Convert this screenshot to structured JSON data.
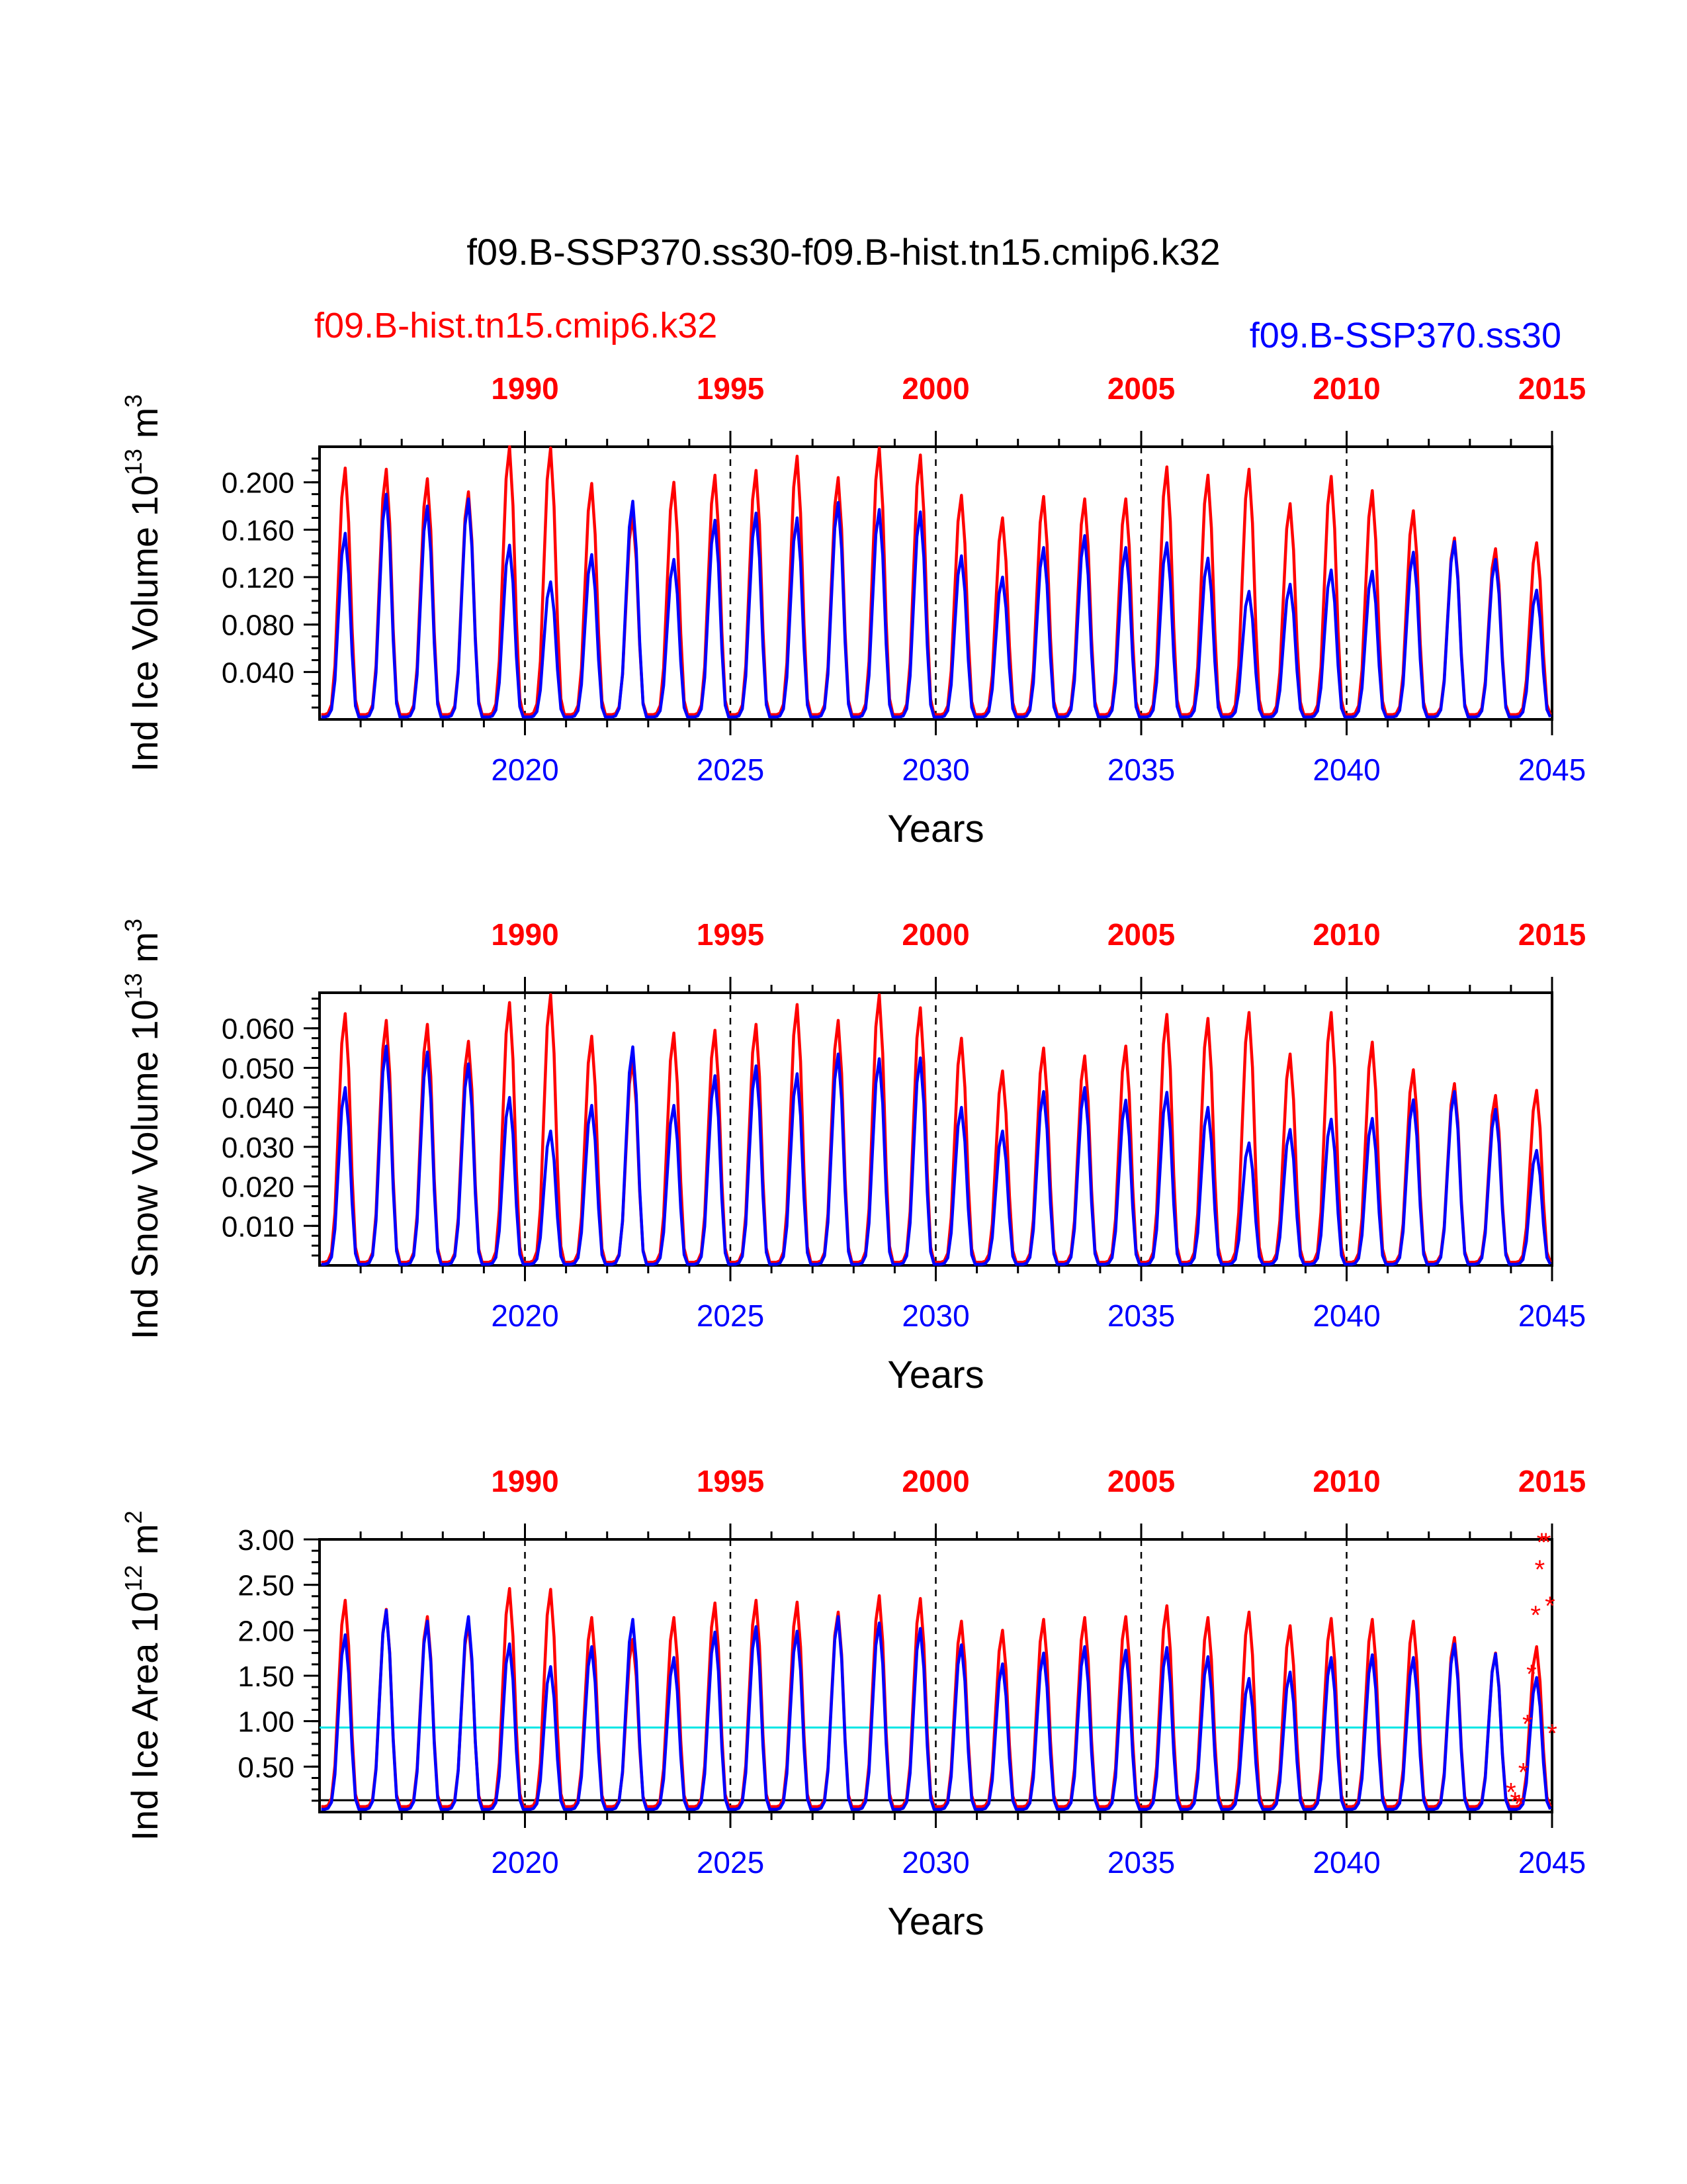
{
  "figure": {
    "title": "f09.B-SSP370.ss30-f09.B-hist.tn15.cmip6.k32",
    "legend_hist": "f09.B-hist.tn15.cmip6.k32",
    "legend_ssp": "f09.B-SSP370.ss30",
    "colors": {
      "hist": "#ff0000",
      "ssp": "#0000ff",
      "threshold": "#00e5e5",
      "ref": "#000000"
    }
  },
  "chart_data": [
    {
      "type": "line",
      "title": "",
      "ylabel_text": "Ind Ice Volume 10",
      "ylabel_sup": "13",
      "ylabel_unit": " m",
      "ylabel_unit_sup": "3",
      "xlabel": "Years",
      "ylim": [
        0,
        0.23
      ],
      "yticks": [
        "0.040",
        "0.080",
        "0.120",
        "0.160",
        "0.200"
      ],
      "ytick_values": [
        0.04,
        0.08,
        0.12,
        0.16,
        0.2
      ],
      "xlim_bottom": [
        2015,
        2045
      ],
      "xticks_bottom": [
        "2020",
        "2025",
        "2030",
        "2035",
        "2040",
        "2045"
      ],
      "xticks_top": [
        "1990",
        "1995",
        "2000",
        "2005",
        "2010",
        "2015"
      ],
      "xtick_values": [
        2020,
        2025,
        2030,
        2035,
        2040,
        2045
      ],
      "series": [
        {
          "name": "f09.B-hist.tn15.cmip6.k32",
          "color": "#ff0000",
          "annual_max": [
            0.212,
            0.211,
            0.203,
            0.192,
            0.23,
            0.229,
            0.199,
            0.172,
            0.2,
            0.206,
            0.21,
            0.222,
            0.204,
            0.229,
            0.223,
            0.189,
            0.17,
            0.188,
            0.186,
            0.186,
            0.213,
            0.206,
            0.211,
            0.182,
            0.205,
            0.193,
            0.176,
            0.153,
            0.144,
            0.149
          ],
          "annual_min": 0.004
        },
        {
          "name": "f09.B-SSP370.ss30",
          "color": "#0000ff",
          "annual_max": [
            0.157,
            0.19,
            0.18,
            0.186,
            0.147,
            0.116,
            0.139,
            0.184,
            0.135,
            0.168,
            0.174,
            0.17,
            0.183,
            0.177,
            0.175,
            0.138,
            0.12,
            0.145,
            0.155,
            0.145,
            0.149,
            0.136,
            0.108,
            0.114,
            0.126,
            0.125,
            0.141,
            0.15,
            0.135,
            0.109
          ],
          "annual_min": 0.002
        }
      ],
      "hlines": [],
      "markers": []
    },
    {
      "type": "line",
      "title": "",
      "ylabel_text": "Ind Snow Volume 10",
      "ylabel_sup": "13",
      "ylabel_unit": " m",
      "ylabel_unit_sup": "3",
      "xlabel": "Years",
      "ylim": [
        0,
        0.069
      ],
      "yticks": [
        "0.010",
        "0.020",
        "0.030",
        "0.040",
        "0.050",
        "0.060"
      ],
      "ytick_values": [
        0.01,
        0.02,
        0.03,
        0.04,
        0.05,
        0.06
      ],
      "xlim_bottom": [
        2015,
        2045
      ],
      "xticks_bottom": [
        "2020",
        "2025",
        "2030",
        "2035",
        "2040",
        "2045"
      ],
      "xticks_top": [
        "1990",
        "1995",
        "2000",
        "2005",
        "2010",
        "2015"
      ],
      "xtick_values": [
        2020,
        2025,
        2030,
        2035,
        2040,
        2045
      ],
      "series": [
        {
          "name": "f09.B-hist.tn15.cmip6.k32",
          "color": "#ff0000",
          "annual_max": [
            0.0637,
            0.062,
            0.061,
            0.0567,
            0.0665,
            0.0685,
            0.058,
            0.052,
            0.0588,
            0.0595,
            0.061,
            0.066,
            0.062,
            0.0685,
            0.0652,
            0.0575,
            0.0492,
            0.055,
            0.053,
            0.0555,
            0.0635,
            0.0625,
            0.064,
            0.0535,
            0.064,
            0.0565,
            0.0495,
            0.046,
            0.043,
            0.0443
          ],
          "annual_min": 0.0008
        },
        {
          "name": "f09.B-SSP370.ss30",
          "color": "#0000ff",
          "annual_max": [
            0.045,
            0.0555,
            0.054,
            0.051,
            0.0425,
            0.034,
            0.0405,
            0.0553,
            0.0405,
            0.048,
            0.0505,
            0.0485,
            0.0535,
            0.0523,
            0.0525,
            0.04,
            0.034,
            0.044,
            0.045,
            0.0418,
            0.0438,
            0.04,
            0.031,
            0.0344,
            0.037,
            0.0372,
            0.0419,
            0.044,
            0.0395,
            0.0291
          ],
          "annual_min": 0.0003
        }
      ],
      "hlines": [],
      "markers": []
    },
    {
      "type": "line",
      "title": "",
      "ylabel_text": "Ind Ice Area 10",
      "ylabel_sup": "12",
      "ylabel_unit": " m",
      "ylabel_unit_sup": "2",
      "xlabel": "Years",
      "ylim": [
        0,
        3.0
      ],
      "yticks": [
        "0.50",
        "1.00",
        "1.50",
        "2.00",
        "2.50",
        "3.00"
      ],
      "ytick_values": [
        0.5,
        1.0,
        1.5,
        2.0,
        2.5,
        3.0
      ],
      "xlim_bottom": [
        2015,
        2045
      ],
      "xticks_bottom": [
        "2020",
        "2025",
        "2030",
        "2035",
        "2040",
        "2045"
      ],
      "xticks_top": [
        "1990",
        "1995",
        "2000",
        "2005",
        "2010",
        "2015"
      ],
      "xtick_values": [
        2020,
        2025,
        2030,
        2035,
        2040,
        2045
      ],
      "series": [
        {
          "name": "f09.B-hist.tn15.cmip6.k32",
          "color": "#ff0000",
          "annual_max": [
            2.33,
            2.23,
            2.15,
            2.08,
            2.46,
            2.45,
            2.14,
            1.9,
            2.14,
            2.3,
            2.33,
            2.31,
            2.2,
            2.38,
            2.35,
            2.1,
            2.0,
            2.12,
            2.14,
            2.15,
            2.27,
            2.14,
            2.2,
            2.05,
            2.13,
            2.12,
            2.1,
            1.92,
            1.75,
            1.82
          ],
          "annual_min": 0.06
        },
        {
          "name": "f09.B-SSP370.ss30",
          "color": "#0000ff",
          "annual_max": [
            1.95,
            2.22,
            2.1,
            2.15,
            1.85,
            1.6,
            1.82,
            2.12,
            1.7,
            1.98,
            2.04,
            1.99,
            2.15,
            2.08,
            2.02,
            1.84,
            1.63,
            1.75,
            1.82,
            1.78,
            1.81,
            1.71,
            1.47,
            1.54,
            1.7,
            1.73,
            1.7,
            1.85,
            1.74,
            1.48
          ],
          "annual_min": 0.03
        }
      ],
      "hlines": [
        {
          "y": 0.93,
          "color": "#00e5e5"
        },
        {
          "y": 0.13,
          "color": "#000000"
        }
      ],
      "markers": [
        {
          "x": 2044.0,
          "y": 0.25
        },
        {
          "x": 2044.1,
          "y": 0.15
        },
        {
          "x": 2044.2,
          "y": 0.12
        },
        {
          "x": 2044.3,
          "y": 0.47
        },
        {
          "x": 2044.4,
          "y": 1.0
        },
        {
          "x": 2044.5,
          "y": 1.55
        },
        {
          "x": 2044.6,
          "y": 2.2
        },
        {
          "x": 2044.7,
          "y": 2.7
        },
        {
          "x": 2044.75,
          "y": 3.0
        },
        {
          "x": 2044.85,
          "y": 3.0
        },
        {
          "x": 2044.95,
          "y": 2.3
        },
        {
          "x": 2045.0,
          "y": 0.9
        }
      ]
    }
  ]
}
